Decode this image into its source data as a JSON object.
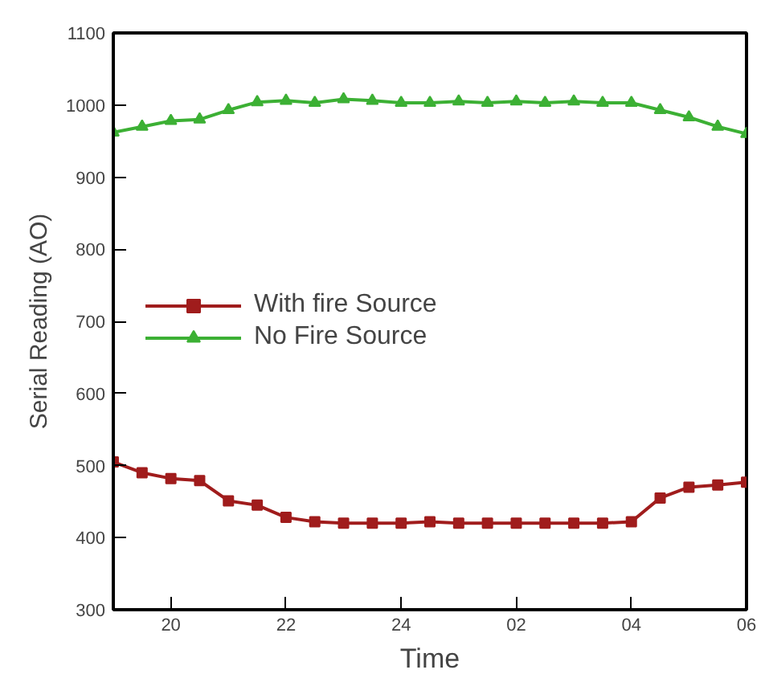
{
  "chart_data": {
    "type": "line",
    "xlabel": "Time",
    "ylabel": "Serial Reading (AO)",
    "categories": [
      null,
      null,
      "20",
      null,
      null,
      null,
      "22",
      null,
      null,
      null,
      "24",
      null,
      null,
      null,
      "02",
      null,
      null,
      null,
      "04",
      null,
      null,
      null,
      "06"
    ],
    "series": [
      {
        "name": "With fire Source",
        "color": "#a01c1c",
        "marker": "square",
        "values": [
          505,
          490,
          482,
          479,
          451,
          445,
          428,
          422,
          420,
          420,
          420,
          422,
          420,
          420,
          420,
          420,
          420,
          420,
          422,
          455,
          470,
          473,
          477
        ]
      },
      {
        "name": "No Fire Source",
        "color": "#3cb034",
        "marker": "triangle",
        "values": [
          962,
          970,
          978,
          980,
          993,
          1004,
          1006,
          1003,
          1008,
          1006,
          1003,
          1003,
          1005,
          1003,
          1005,
          1003,
          1005,
          1003,
          1003,
          993,
          983,
          970,
          960
        ]
      }
    ],
    "ylim": [
      300,
      1100
    ],
    "yticks": [
      300,
      400,
      500,
      600,
      700,
      800,
      900,
      1000,
      1100
    ],
    "grid": false,
    "legend": "left",
    "line_style": "solid"
  }
}
